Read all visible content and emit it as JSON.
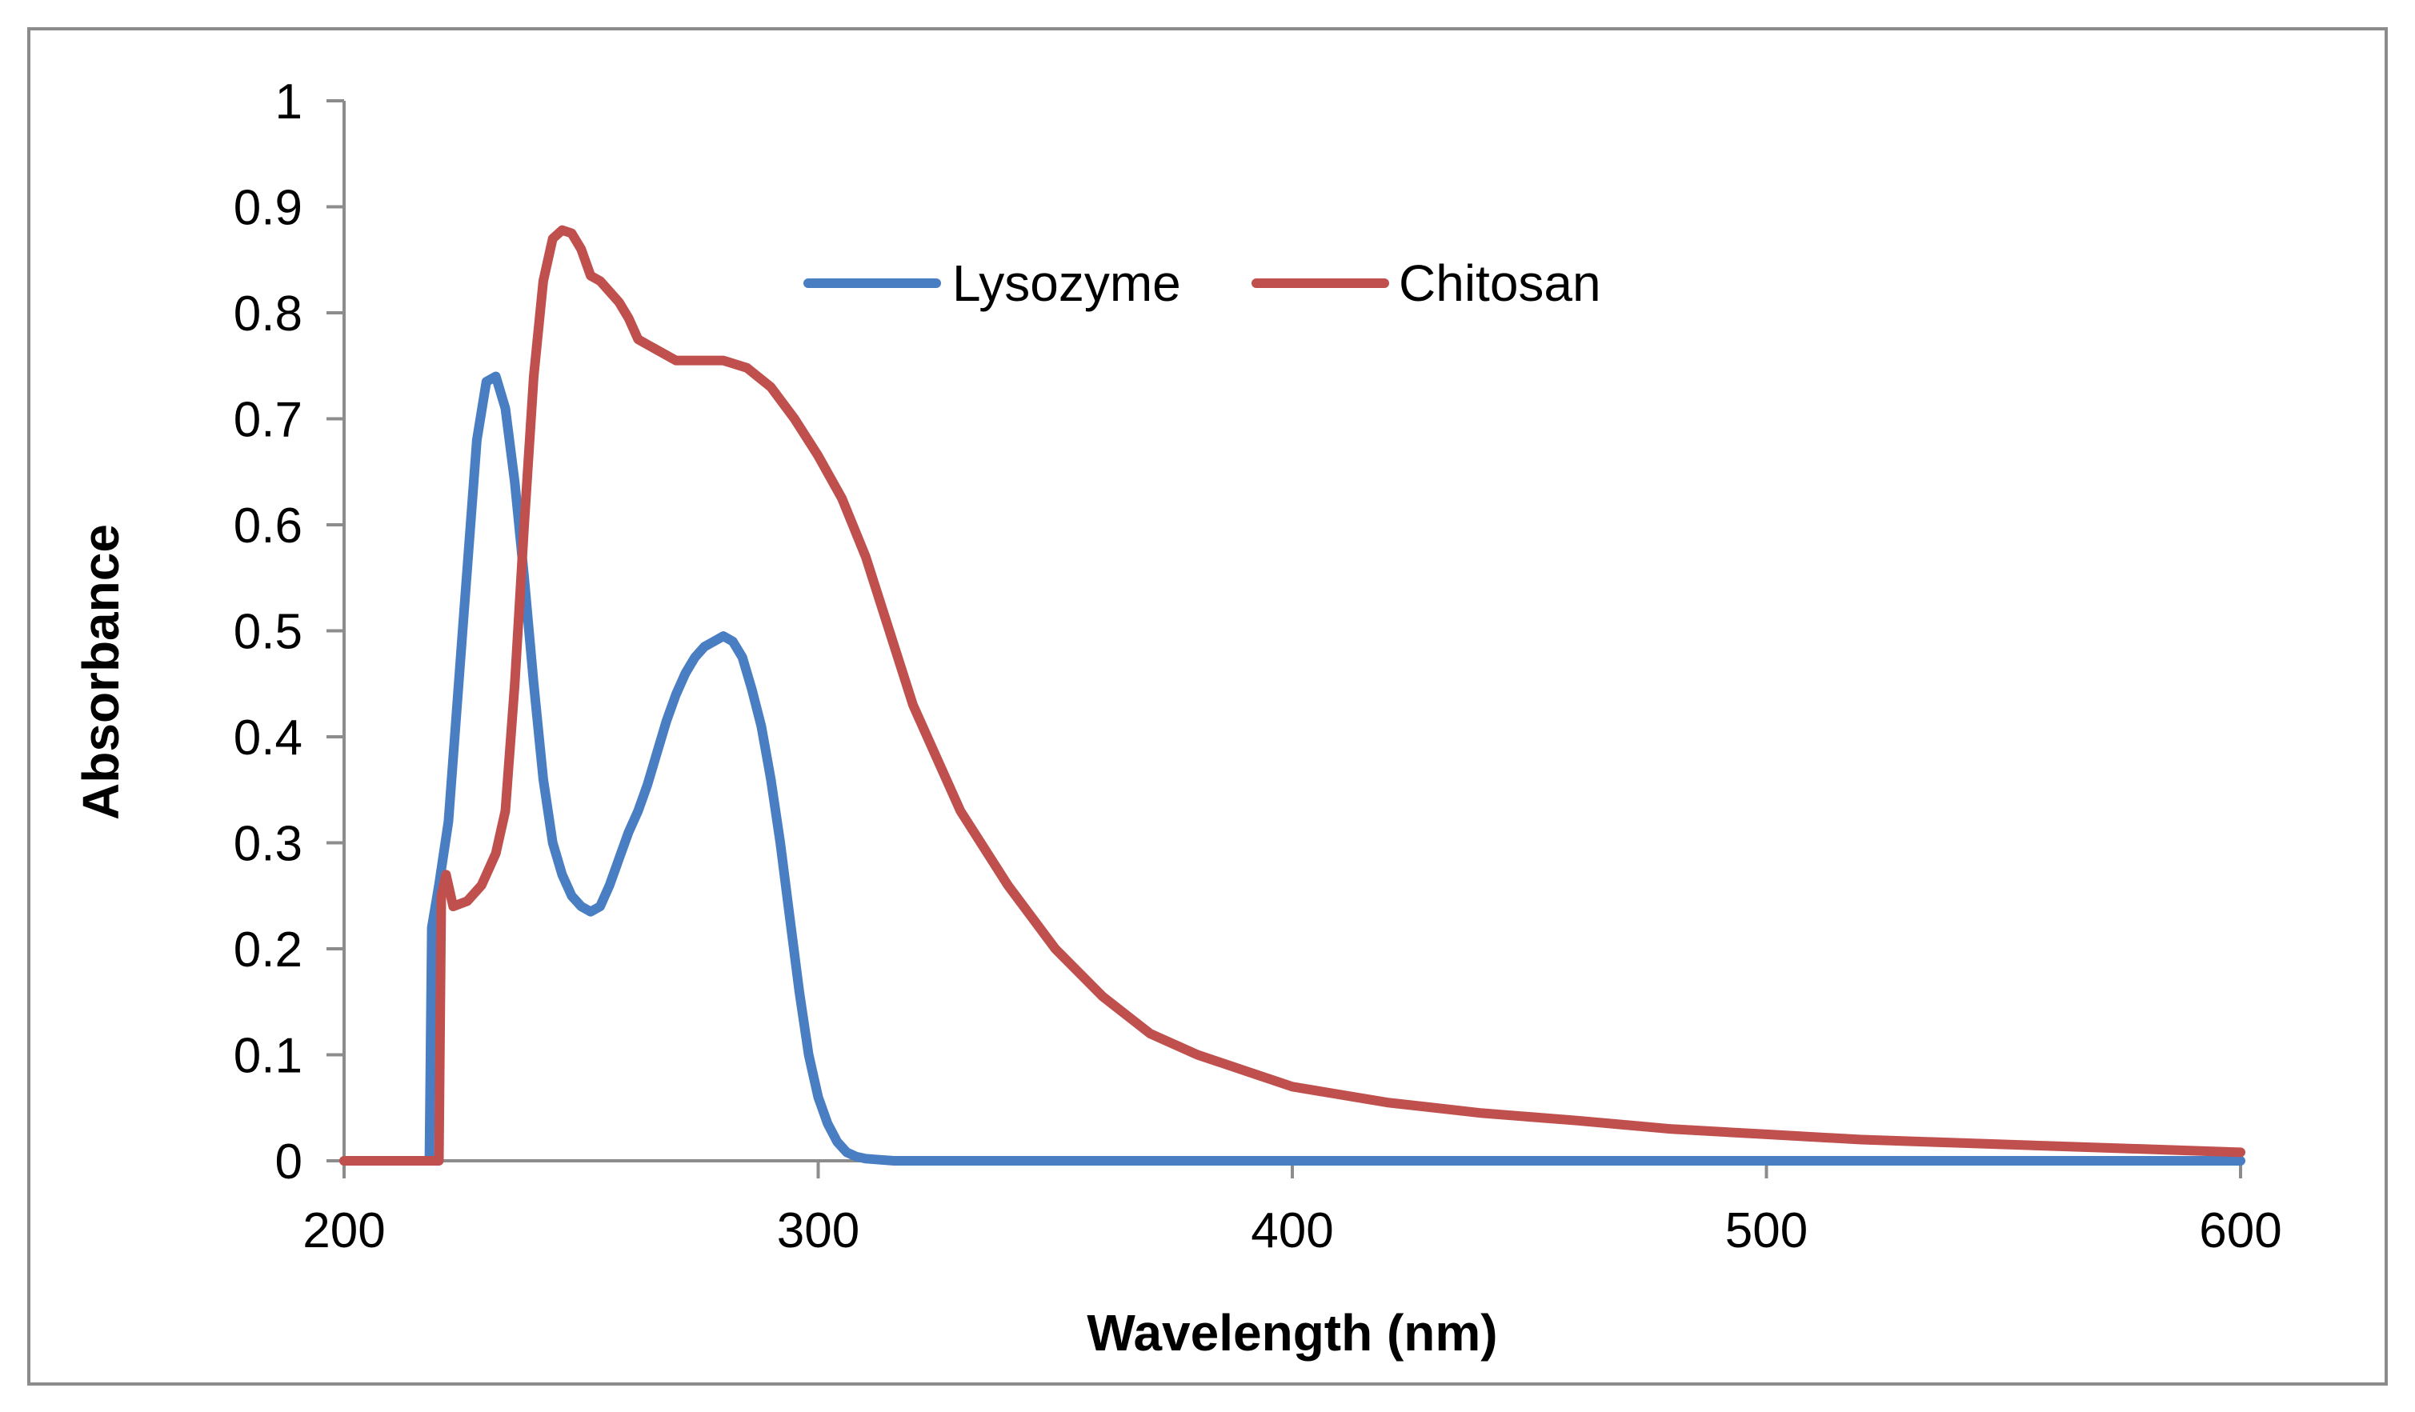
{
  "chart_data": {
    "type": "line",
    "title": "",
    "xlabel": "Wavelength (nm)",
    "ylabel": "Absorbance",
    "xlim": [
      200,
      600
    ],
    "ylim": [
      0,
      1
    ],
    "x_ticks": [
      200,
      300,
      400,
      500,
      600
    ],
    "y_ticks": [
      0,
      0.1,
      0.2,
      0.3,
      0.4,
      0.5,
      0.6,
      0.7,
      0.8,
      0.9,
      1
    ],
    "x_tick_labels": [
      "200",
      "300",
      "400",
      "500",
      "600"
    ],
    "y_tick_labels": [
      "0",
      "0.1",
      "0.2",
      "0.3",
      "0.4",
      "0.5",
      "0.6",
      "0.7",
      "0.8",
      "0.9",
      "1"
    ],
    "grid": false,
    "legend_position": "top-center",
    "series": [
      {
        "name": "Lysozyme",
        "color": "#4a7ec2",
        "x": [
          200,
          218,
          218.5,
          220,
          222,
          225,
          228,
          230,
          232,
          234,
          236,
          238,
          240,
          242,
          244,
          246,
          248,
          250,
          252,
          254,
          256,
          258,
          260,
          262,
          264,
          266,
          268,
          270,
          272,
          274,
          276,
          278,
          280,
          282,
          284,
          286,
          288,
          290,
          292,
          294,
          296,
          298,
          300,
          302,
          304,
          306,
          308,
          310,
          313,
          316,
          320,
          330,
          350,
          400,
          450,
          500,
          550,
          600
        ],
        "y": [
          0,
          0,
          0.22,
          0.26,
          0.32,
          0.5,
          0.68,
          0.735,
          0.74,
          0.71,
          0.64,
          0.55,
          0.45,
          0.36,
          0.3,
          0.27,
          0.25,
          0.24,
          0.235,
          0.24,
          0.26,
          0.285,
          0.31,
          0.33,
          0.355,
          0.385,
          0.415,
          0.44,
          0.46,
          0.475,
          0.485,
          0.49,
          0.495,
          0.49,
          0.475,
          0.445,
          0.41,
          0.36,
          0.3,
          0.23,
          0.16,
          0.1,
          0.06,
          0.035,
          0.018,
          0.008,
          0.004,
          0.002,
          0.001,
          0,
          0,
          0,
          0,
          0,
          0,
          0,
          0,
          0
        ]
      },
      {
        "name": "Chitosan",
        "color": "#c0504d",
        "x": [
          200,
          220,
          220.5,
          221.5,
          223,
          226,
          229,
          232,
          234,
          236,
          238,
          240,
          242,
          244,
          246,
          248,
          250,
          252,
          254,
          256,
          258,
          260,
          262,
          264,
          266,
          268,
          270,
          272,
          275,
          280,
          285,
          290,
          295,
          300,
          305,
          310,
          315,
          320,
          330,
          340,
          350,
          360,
          370,
          380,
          390,
          400,
          420,
          440,
          460,
          480,
          500,
          520,
          540,
          560,
          580,
          600
        ],
        "y": [
          0,
          0,
          0.25,
          0.27,
          0.24,
          0.245,
          0.26,
          0.29,
          0.33,
          0.45,
          0.6,
          0.74,
          0.83,
          0.87,
          0.878,
          0.875,
          0.86,
          0.835,
          0.83,
          0.82,
          0.81,
          0.795,
          0.775,
          0.77,
          0.765,
          0.76,
          0.755,
          0.755,
          0.755,
          0.755,
          0.748,
          0.73,
          0.7,
          0.665,
          0.625,
          0.57,
          0.5,
          0.43,
          0.33,
          0.26,
          0.2,
          0.155,
          0.12,
          0.1,
          0.085,
          0.07,
          0.055,
          0.045,
          0.038,
          0.03,
          0.025,
          0.02,
          0.017,
          0.014,
          0.011,
          0.008
        ]
      }
    ]
  }
}
